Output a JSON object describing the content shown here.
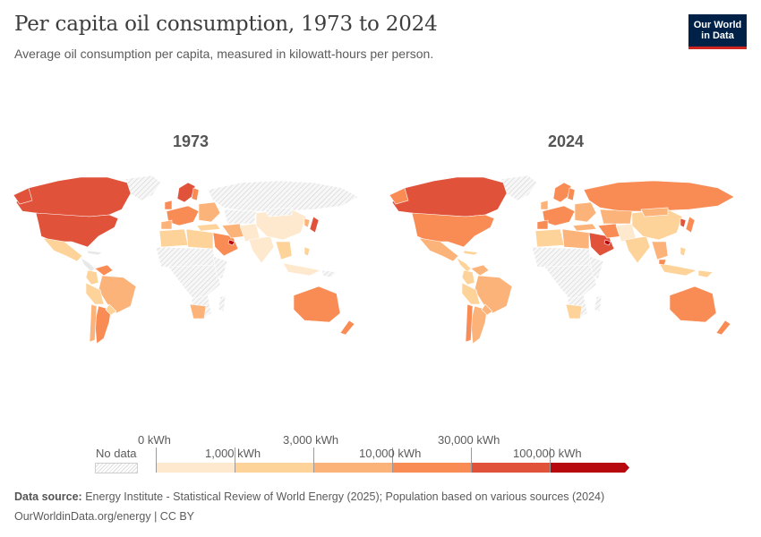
{
  "header": {
    "title": "Per capita oil consumption, 1973 to 2024",
    "subtitle": "Average oil consumption per capita, measured in kilowatt-hours per person.",
    "logo_line1": "Our World",
    "logo_line2": "in Data"
  },
  "maps": [
    {
      "year_label": "1973"
    },
    {
      "year_label": "2024"
    }
  ],
  "legend": {
    "no_data_label": "No data",
    "top_labels": [
      "0 kWh",
      "3,000 kWh",
      "30,000 kWh"
    ],
    "bottom_labels": [
      "1,000 kWh",
      "10,000 kWh",
      "100,000 kWh"
    ],
    "bins": [
      {
        "from": "0 kWh",
        "to": "1,000 kWh",
        "color": "#fee9cf"
      },
      {
        "from": "1,000 kWh",
        "to": "3,000 kWh",
        "color": "#fdd39a"
      },
      {
        "from": "3,000 kWh",
        "to": "10,000 kWh",
        "color": "#fcb37a"
      },
      {
        "from": "10,000 kWh",
        "to": "30,000 kWh",
        "color": "#f98b55"
      },
      {
        "from": "30,000 kWh",
        "to": "100,000 kWh",
        "color": "#e0533a"
      },
      {
        "from": "100,000 kWh",
        "to": "",
        "color": "#b7090d"
      }
    ],
    "no_data_color": "#e8e8e8"
  },
  "footer": {
    "source_label": "Data source:",
    "source_text": "Energy Institute - Statistical Review of World Energy (2025); Population based on various sources (2024)",
    "url_text": "OurWorldinData.org/energy | CC BY"
  }
}
